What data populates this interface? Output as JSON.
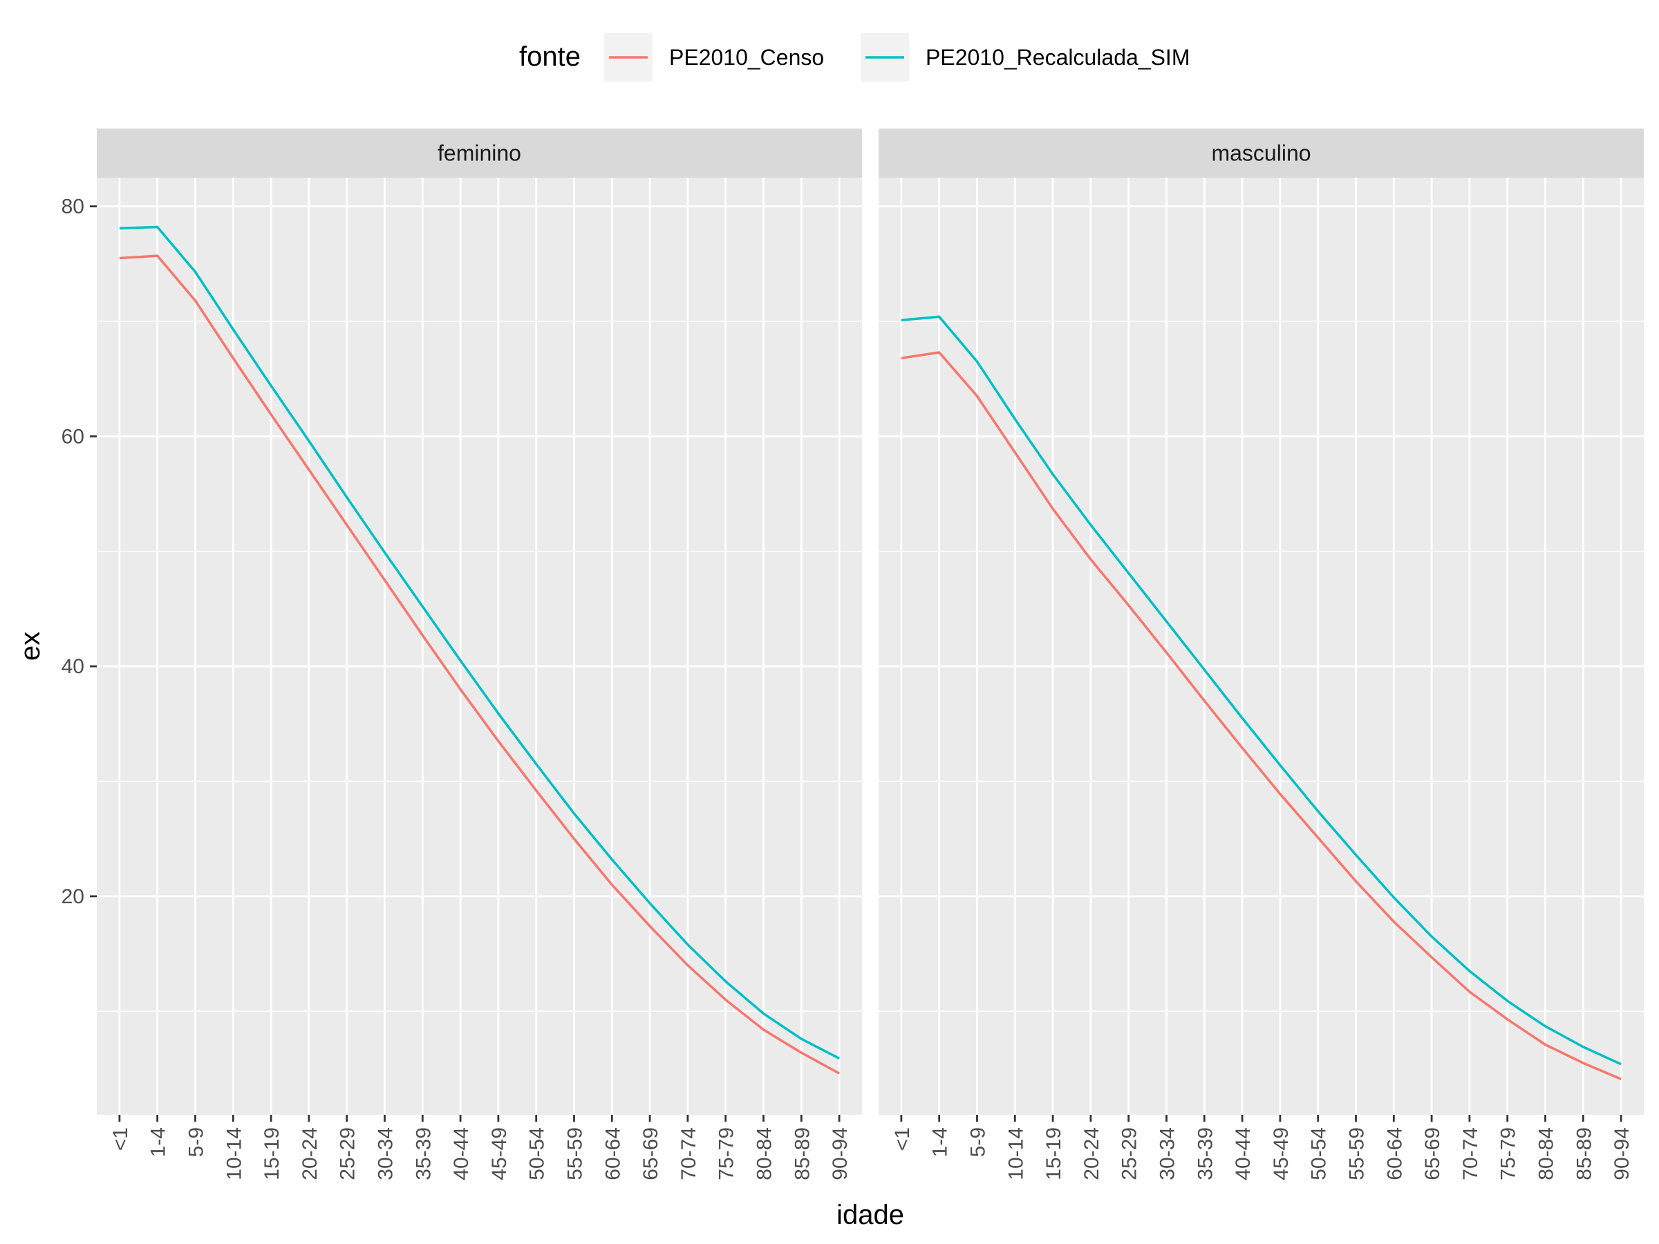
{
  "chart_data": {
    "type": "line",
    "legend": {
      "title": "fonte",
      "position": "top",
      "entries": [
        "PE2010_Censo",
        "PE2010_Recalculada_SIM"
      ]
    },
    "xlabel": "idade",
    "ylabel": "ex",
    "categories": [
      "<1",
      "1-4",
      "5-9",
      "10-14",
      "15-19",
      "20-24",
      "25-29",
      "30-34",
      "35-39",
      "40-44",
      "45-49",
      "50-54",
      "55-59",
      "60-64",
      "65-69",
      "70-74",
      "75-79",
      "80-84",
      "85-89",
      "90-94"
    ],
    "ylim": [
      1.0,
      82.5
    ],
    "y_ticks": [
      20,
      40,
      60,
      80
    ],
    "grid": true,
    "series_colors": {
      "PE2010_Censo": "#F8766D",
      "PE2010_Recalculada_SIM": "#00BFC4"
    },
    "panels": [
      {
        "strip": "feminino",
        "series": [
          {
            "name": "PE2010_Censo",
            "values": [
              75.5,
              75.7,
              71.8,
              66.8,
              61.9,
              57.1,
              52.3,
              47.5,
              42.7,
              38.0,
              33.5,
              29.2,
              25.0,
              21.0,
              17.4,
              14.0,
              11.0,
              8.4,
              6.4,
              4.6
            ]
          },
          {
            "name": "PE2010_Recalculada_SIM",
            "values": [
              78.1,
              78.2,
              74.3,
              69.3,
              64.4,
              59.6,
              54.7,
              49.9,
              45.2,
              40.5,
              35.9,
              31.5,
              27.2,
              23.2,
              19.4,
              15.8,
              12.6,
              9.8,
              7.6,
              5.9
            ]
          }
        ]
      },
      {
        "strip": "masculino",
        "series": [
          {
            "name": "PE2010_Censo",
            "values": [
              66.8,
              67.3,
              63.5,
              58.6,
              53.7,
              49.3,
              45.3,
              41.2,
              37.0,
              32.9,
              28.9,
              25.1,
              21.3,
              17.8,
              14.7,
              11.7,
              9.3,
              7.1,
              5.5,
              4.1
            ]
          },
          {
            "name": "PE2010_Recalculada_SIM",
            "values": [
              70.1,
              70.4,
              66.5,
              61.5,
              56.7,
              52.3,
              48.1,
              43.9,
              39.7,
              35.5,
              31.4,
              27.4,
              23.6,
              19.9,
              16.5,
              13.5,
              10.9,
              8.7,
              6.9,
              5.4
            ]
          }
        ]
      }
    ]
  }
}
